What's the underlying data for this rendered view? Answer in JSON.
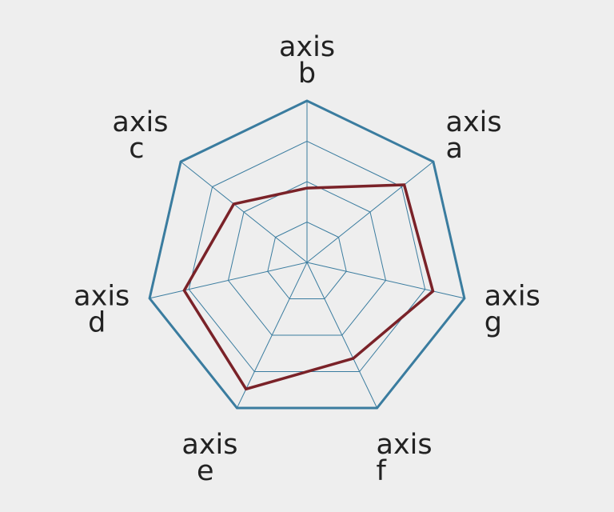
{
  "chart_data": {
    "type": "radar",
    "axes": [
      {
        "line1": "axis",
        "line2": "a"
      },
      {
        "line1": "axis",
        "line2": "b"
      },
      {
        "line1": "axis",
        "line2": "c"
      },
      {
        "line1": "axis",
        "line2": "d"
      },
      {
        "line1": "axis",
        "line2": "e"
      },
      {
        "line1": "axis",
        "line2": "f"
      },
      {
        "line1": "axis",
        "line2": "g"
      }
    ],
    "rlim": [
      0,
      1
    ],
    "rings": [
      0.25,
      0.5,
      0.75,
      1.0
    ],
    "series": [
      {
        "values": [
          0.77,
          0.46,
          0.58,
          0.78,
          0.87,
          0.66,
          0.8
        ],
        "color": "#7a2228"
      }
    ],
    "grid_color": "#3a7c9f",
    "grid": true
  }
}
